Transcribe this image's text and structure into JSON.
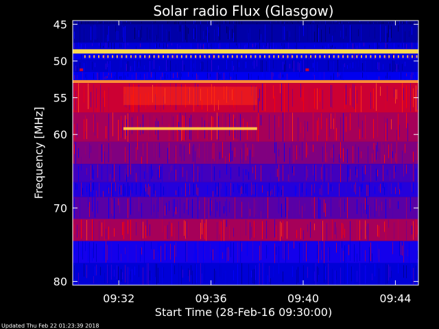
{
  "chart_data": {
    "type": "heatmap",
    "title": "Solar radio Flux (Glasgow)",
    "xlabel": "Start Time (28-Feb-16 09:30:00)",
    "ylabel": "Frequency [MHz]",
    "x_tick_labels": [
      "09:32",
      "09:36",
      "09:40",
      "09:44"
    ],
    "x_tick_minutes": [
      2,
      6,
      10,
      14
    ],
    "x_range_minutes": [
      0,
      15
    ],
    "y_tick_labels": [
      "45",
      "50",
      "55",
      "60",
      "70",
      "80"
    ],
    "y_ticks": [
      45,
      50,
      55,
      60,
      70,
      80
    ],
    "y_range": [
      44.5,
      80.5
    ],
    "colormap": [
      "#000060",
      "#0000ff",
      "#ff0000",
      "#ffff60"
    ],
    "bands": [
      {
        "start": 44.5,
        "end": 45.0,
        "level": 0.08
      },
      {
        "start": 45.0,
        "end": 47.5,
        "level": 0.15
      },
      {
        "start": 47.5,
        "end": 48.4,
        "level": 0.25
      },
      {
        "start": 48.4,
        "end": 49.0,
        "level": 0.95
      },
      {
        "start": 49.0,
        "end": 49.8,
        "level": 0.3
      },
      {
        "start": 49.8,
        "end": 51.5,
        "level": 0.22
      },
      {
        "start": 51.5,
        "end": 52.6,
        "level": 0.3
      },
      {
        "start": 52.6,
        "end": 53.0,
        "level": 0.85
      },
      {
        "start": 53.0,
        "end": 57.0,
        "level": 0.6
      },
      {
        "start": 57.0,
        "end": 61.0,
        "level": 0.55
      },
      {
        "start": 61.0,
        "end": 64.0,
        "level": 0.5
      },
      {
        "start": 64.0,
        "end": 66.5,
        "level": 0.42
      },
      {
        "start": 66.5,
        "end": 68.5,
        "level": 0.38
      },
      {
        "start": 68.5,
        "end": 71.5,
        "level": 0.45
      },
      {
        "start": 71.5,
        "end": 74.5,
        "level": 0.55
      },
      {
        "start": 74.5,
        "end": 77.5,
        "level": 0.36
      },
      {
        "start": 77.5,
        "end": 80.5,
        "level": 0.25
      }
    ],
    "features": [
      {
        "name": "interference-line",
        "freq": 59.2,
        "t_start": 2.2,
        "t_end": 8.0,
        "level": 0.92
      },
      {
        "name": "enhanced-block",
        "freq_start": 53.5,
        "freq_end": 56.0,
        "t_start": 2.2,
        "t_end": 8.0,
        "level": 0.72
      },
      {
        "name": "spot-1",
        "freq": 51.2,
        "t_start": 0.3,
        "t_end": 0.45,
        "level": 0.6
      },
      {
        "name": "spot-2",
        "freq": 51.2,
        "t_start": 10.1,
        "t_end": 10.25,
        "level": 0.6
      }
    ],
    "grid": false
  },
  "footer": {
    "updated": "Updated Thu Feb 22 01:23:39 2018"
  }
}
